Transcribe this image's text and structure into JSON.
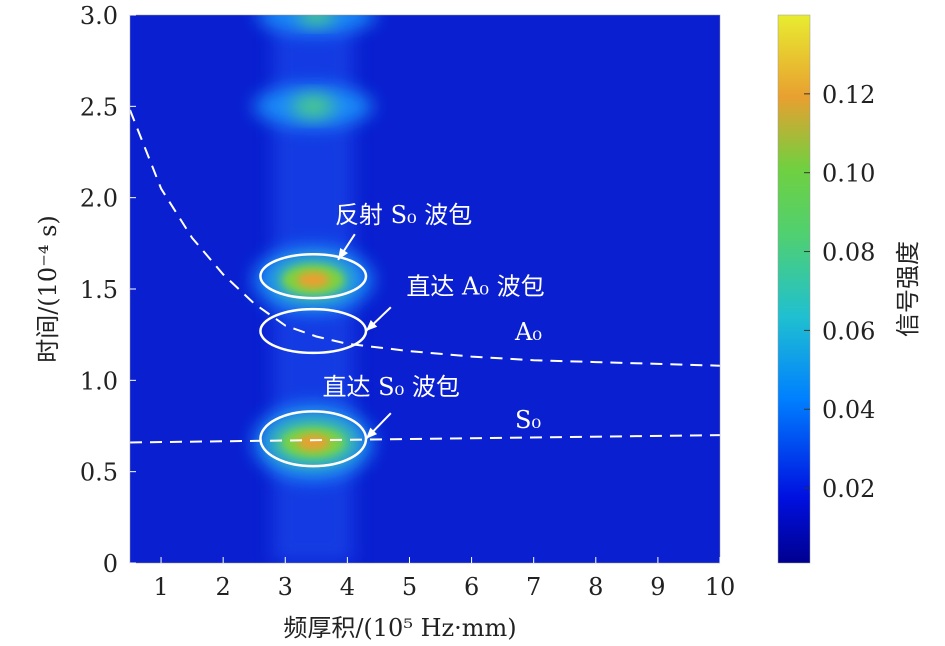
{
  "chart_data": {
    "type": "heatmap",
    "xlabel": "频厚积/(10⁵ Hz·mm)",
    "ylabel": "时间/(10⁻⁴ s)",
    "xlim": [
      0.5,
      10
    ],
    "ylim": [
      0,
      3.0
    ],
    "xticks": [
      "1",
      "2",
      "3",
      "4",
      "5",
      "6",
      "7",
      "8",
      "9",
      "10"
    ],
    "xtick_values": [
      1,
      2,
      3,
      4,
      5,
      6,
      7,
      8,
      9,
      10
    ],
    "yticks": [
      "0",
      "0.5",
      "1.0",
      "1.5",
      "2.0",
      "2.5",
      "3.0"
    ],
    "ytick_values": [
      0,
      0.5,
      1.0,
      1.5,
      2.0,
      2.5,
      3.0
    ],
    "colorbar": {
      "label": "信号强度",
      "range": [
        0.001,
        0.14
      ],
      "ticks": [
        "0.02",
        "0.04",
        "0.06",
        "0.08",
        "0.10",
        "0.12"
      ],
      "tick_values": [
        0.02,
        0.04,
        0.06,
        0.08,
        0.1,
        0.12
      ],
      "colormap": [
        "#00008f",
        "#0020ff",
        "#00a0ff",
        "#30d0a0",
        "#70d040",
        "#e8a030",
        "#f0e030"
      ]
    },
    "hotspots": [
      {
        "x": 3.45,
        "y": 0.66,
        "value": 0.14
      },
      {
        "x": 3.45,
        "y": 1.55,
        "value": 0.12
      },
      {
        "x": 3.45,
        "y": 2.5,
        "value": 0.07
      },
      {
        "x": 3.5,
        "y": 3.0,
        "value": 0.06
      }
    ],
    "series": [
      {
        "name": "A₀",
        "style": "dashed",
        "x": [
          0.5,
          1,
          1.5,
          2,
          2.5,
          3,
          3.5,
          4,
          5,
          6,
          7,
          8,
          9,
          10
        ],
        "y": [
          2.48,
          2.05,
          1.78,
          1.58,
          1.42,
          1.3,
          1.24,
          1.2,
          1.16,
          1.13,
          1.11,
          1.1,
          1.09,
          1.08
        ]
      },
      {
        "name": "S₀",
        "style": "dashed",
        "x": [
          0.5,
          10
        ],
        "y": [
          0.66,
          0.7
        ]
      }
    ],
    "ellipses": [
      {
        "cx": 3.45,
        "cy": 1.57,
        "rx": 0.85,
        "ry": 0.12
      },
      {
        "cx": 3.45,
        "cy": 1.27,
        "rx": 0.85,
        "ry": 0.12
      },
      {
        "cx": 3.45,
        "cy": 0.68,
        "rx": 0.85,
        "ry": 0.15
      }
    ],
    "annotations": [
      {
        "text": "反射 S₀ 波包",
        "x": 3.8,
        "y": 1.86,
        "arrow_from": [
          4.12,
          1.8
        ],
        "arrow_to": [
          3.85,
          1.66
        ]
      },
      {
        "text": "直达 A₀ 波包",
        "x": 4.95,
        "y": 1.47,
        "arrow_from": [
          4.7,
          1.4
        ],
        "arrow_to": [
          4.3,
          1.27
        ]
      },
      {
        "text": "直达 S₀ 波包",
        "x": 3.6,
        "y": 0.92,
        "arrow_from": [
          4.7,
          0.82
        ],
        "arrow_to": [
          4.3,
          0.68
        ]
      },
      {
        "text": "A₀",
        "x": 6.7,
        "y": 1.22
      },
      {
        "text": "S₀",
        "x": 6.7,
        "y": 0.74
      }
    ]
  }
}
